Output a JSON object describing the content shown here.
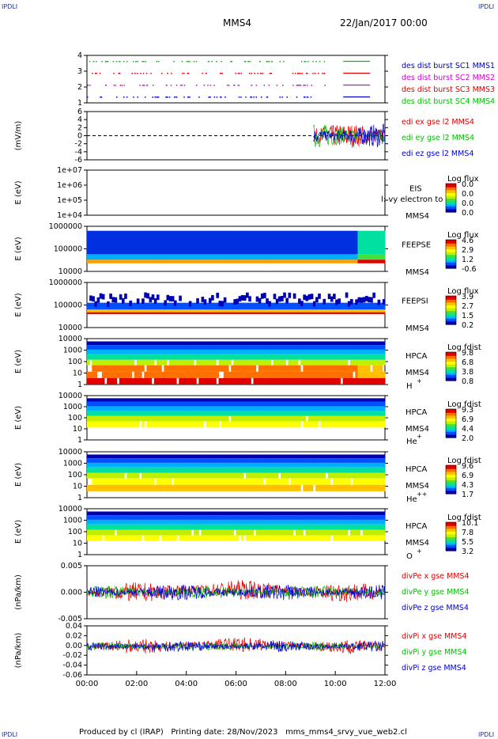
{
  "header": {
    "corner_left_top": "IPDLI",
    "corner_right_top": "IPDLI",
    "corner_left_bottom": "IPDLI",
    "corner_right_bottom": "IPDLI",
    "spacecraft": "MMS4",
    "date_time": "22/Jan/2017 00:00"
  },
  "footer": {
    "produced_by": "Produced by cl (IRAP)",
    "printing_date": "Printing date: 28/Nov/2023",
    "script": "mms_mms4_srvy_vue_web2.cl"
  },
  "colors": {
    "mms1": "#0000c8",
    "mms2": "#d800d8",
    "mms3": "#e00000",
    "mms4": "#00c000",
    "x": "#e00000",
    "y": "#00c000",
    "z": "#0000d0"
  },
  "chart_data": [
    {
      "type": "scatter",
      "panel": "burst",
      "y_ticks": [
        "1",
        "2",
        "3",
        "4"
      ],
      "ylim": [
        0.5,
        4.5
      ],
      "series": [
        {
          "name": "des dist burst SC1 MMS1",
          "level": 1
        },
        {
          "name": "des dist burst SC2 MMS2",
          "level": 2
        },
        {
          "name": "des dist burst SC3 MMS3",
          "level": 3
        },
        {
          "name": "des dist burst SC4 MMS4",
          "level": 4
        }
      ]
    },
    {
      "type": "line",
      "panel": "edi",
      "ylabel": "(mV/m)",
      "y_ticks": [
        "-6",
        "-4",
        "-2",
        "0",
        "2",
        "4",
        "6"
      ],
      "ylim": [
        -6,
        6
      ],
      "series": [
        {
          "name": "edi ex gse l2 MMS4"
        },
        {
          "name": "edi ey gse l2 MMS4"
        },
        {
          "name": "edi ez gse l2 MMS4"
        }
      ]
    },
    {
      "type": "heatmap",
      "panel": "eis",
      "ylabel": "E (eV)",
      "y_ticks": [
        "1e+04",
        "1e+05",
        "1e+06",
        "1e+07"
      ],
      "instrument": "EIS",
      "spacecraft": "MMS4",
      "overlay_text": "l: vy electron to",
      "colorbar_title": "Log flux",
      "colorbar_ticks": [
        "0.0",
        "0.0",
        "0.0",
        "0.0"
      ]
    },
    {
      "type": "heatmap",
      "panel": "feepse",
      "ylabel": "E (eV)",
      "y_ticks": [
        "10000",
        "100000",
        "1000000"
      ],
      "instrument": "FEEPSE",
      "spacecraft": "MMS4",
      "colorbar_title": "Log flux",
      "colorbar_ticks": [
        "4.6",
        "2.9",
        "1.2",
        "-0.6"
      ]
    },
    {
      "type": "heatmap",
      "panel": "feepsi",
      "ylabel": "E (eV)",
      "y_ticks": [
        "10000",
        "100000",
        "1000000"
      ],
      "instrument": "FEEPSI",
      "spacecraft": "MMS4",
      "colorbar_title": "Log flux",
      "colorbar_ticks": [
        "3.9",
        "2.7",
        "1.5",
        "0.2"
      ]
    },
    {
      "type": "heatmap",
      "panel": "hpca_h",
      "ylabel": "E (eV)",
      "y_ticks": [
        "1",
        "10",
        "100",
        "1000",
        "10000"
      ],
      "instrument": "HPCA",
      "spacecraft": "MMS4",
      "species": "H",
      "charge": "+",
      "colorbar_title": "Log fdist",
      "colorbar_ticks": [
        "9.8",
        "6.8",
        "3.8",
        "0.8"
      ]
    },
    {
      "type": "heatmap",
      "panel": "hpca_he",
      "ylabel": "E (eV)",
      "y_ticks": [
        "1",
        "10",
        "100",
        "1000",
        "10000"
      ],
      "instrument": "HPCA",
      "spacecraft": "MMS4",
      "species": "He",
      "charge": "+",
      "colorbar_title": "Log fdist",
      "colorbar_ticks": [
        "9.3",
        "6.9",
        "4.4",
        "2.0"
      ]
    },
    {
      "type": "heatmap",
      "panel": "hpca_he2",
      "ylabel": "E (eV)",
      "y_ticks": [
        "1",
        "10",
        "100",
        "1000",
        "10000"
      ],
      "instrument": "HPCA",
      "spacecraft": "MMS4",
      "species": "He",
      "charge": "++",
      "colorbar_title": "Log fdist",
      "colorbar_ticks": [
        "9.6",
        "6.9",
        "4.3",
        "1.7"
      ]
    },
    {
      "type": "heatmap",
      "panel": "hpca_o",
      "ylabel": "E (eV)",
      "y_ticks": [
        "1",
        "10",
        "100",
        "1000",
        "10000"
      ],
      "instrument": "HPCA",
      "spacecraft": "MMS4",
      "species": "O",
      "charge": "+",
      "colorbar_title": "Log fdist",
      "colorbar_ticks": [
        "10.1",
        "7.8",
        "5.5",
        "3.2"
      ]
    },
    {
      "type": "line",
      "panel": "divpe",
      "ylabel": "(nPa/km)",
      "y_ticks": [
        "-0.005",
        "0.000",
        "0.005"
      ],
      "ylim": [
        -0.008,
        0.008
      ],
      "series": [
        {
          "name": "divPe x gse MMS4",
          "amp": 0.003
        },
        {
          "name": "divPe y gse MMS4",
          "amp": 0.002
        },
        {
          "name": "divPe z gse MMS4",
          "amp": 0.0025
        }
      ]
    },
    {
      "type": "line",
      "panel": "divpi",
      "ylabel": "(nPa/km)",
      "y_ticks": [
        "-0.06",
        "-0.04",
        "-0.02",
        "0.00",
        "0.02",
        "0.04"
      ],
      "ylim": [
        -0.07,
        0.05
      ],
      "series": [
        {
          "name": "divPi x gse MMS4",
          "amp": 0.018
        },
        {
          "name": "divPi y gse MMS4",
          "amp": 0.01
        },
        {
          "name": "divPi z gse MMS4",
          "amp": 0.014
        }
      ]
    }
  ],
  "time_axis": {
    "ticks": [
      "00:00",
      "02:00",
      "04:00",
      "06:00",
      "08:00",
      "10:00",
      "12:00"
    ],
    "range_hours": [
      0,
      12
    ]
  }
}
